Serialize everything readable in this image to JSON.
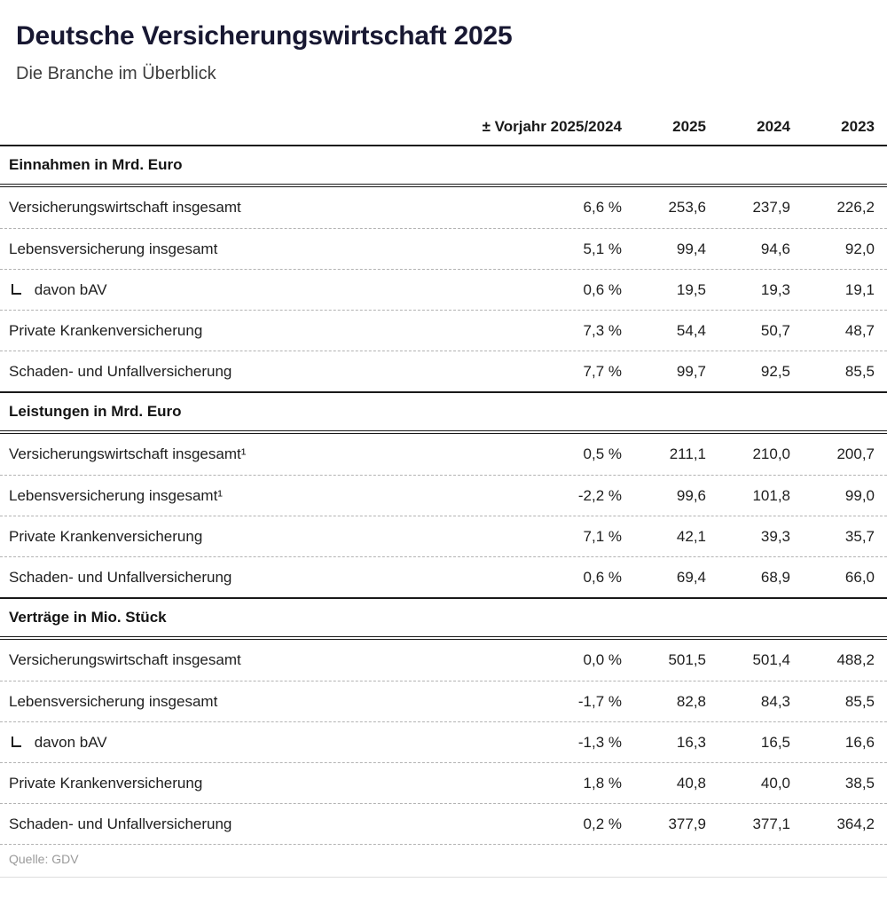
{
  "colors": {
    "title": "#181832",
    "body_text": "#1e1e1e",
    "subtitle": "#3d3d3d",
    "strong_rule": "#191919",
    "dashed_rule": "#b3b3b3",
    "source_text": "#9a9a9a",
    "background": "#ffffff"
  },
  "chart_data": {
    "type": "table",
    "title": "Deutsche Versicherungswirtschaft 2025",
    "subtitle": "Die Branche im Überblick",
    "source": "Quelle: GDV",
    "columns": [
      "± Vorjahr 2025/2024",
      "2025",
      "2024",
      "2023"
    ],
    "sections": [
      {
        "header": "Einnahmen in Mrd. Euro",
        "rows": [
          {
            "label": "Versicherungswirtschaft insgesamt",
            "sub": false,
            "values": [
              "6,6 %",
              "253,6",
              "237,9",
              "226,2"
            ]
          },
          {
            "label": "Lebensversicherung insgesamt",
            "sub": false,
            "values": [
              "5,1 %",
              "99,4",
              "94,6",
              "92,0"
            ]
          },
          {
            "label": "davon bAV",
            "sub": true,
            "values": [
              "0,6 %",
              "19,5",
              "19,3",
              "19,1"
            ]
          },
          {
            "label": "Private Krankenversicherung",
            "sub": false,
            "values": [
              "7,3 %",
              "54,4",
              "50,7",
              "48,7"
            ]
          },
          {
            "label": "Schaden- und Unfallversicherung",
            "sub": false,
            "values": [
              "7,7 %",
              "99,7",
              "92,5",
              "85,5"
            ]
          }
        ]
      },
      {
        "header": "Leistungen in Mrd. Euro",
        "rows": [
          {
            "label": "Versicherungswirtschaft insgesamt¹",
            "sub": false,
            "values": [
              "0,5 %",
              "211,1",
              "210,0",
              "200,7"
            ]
          },
          {
            "label": "Lebensversicherung insgesamt¹",
            "sub": false,
            "values": [
              "-2,2 %",
              "99,6",
              "101,8",
              "99,0"
            ]
          },
          {
            "label": "Private Krankenversicherung",
            "sub": false,
            "values": [
              "7,1 %",
              "42,1",
              "39,3",
              "35,7"
            ]
          },
          {
            "label": "Schaden- und Unfallversicherung",
            "sub": false,
            "values": [
              "0,6 %",
              "69,4",
              "68,9",
              "66,0"
            ]
          }
        ]
      },
      {
        "header": "Verträge in Mio. Stück",
        "rows": [
          {
            "label": "Versicherungswirtschaft insgesamt",
            "sub": false,
            "values": [
              "0,0 %",
              "501,5",
              "501,4",
              "488,2"
            ]
          },
          {
            "label": "Lebensversicherung insgesamt",
            "sub": false,
            "values": [
              "-1,7 %",
              "82,8",
              "84,3",
              "85,5"
            ]
          },
          {
            "label": "davon bAV",
            "sub": true,
            "values": [
              "-1,3 %",
              "16,3",
              "16,5",
              "16,6"
            ]
          },
          {
            "label": "Private Krankenversicherung",
            "sub": false,
            "values": [
              "1,8 %",
              "40,8",
              "40,0",
              "38,5"
            ]
          },
          {
            "label": "Schaden- und Unfallversicherung",
            "sub": false,
            "values": [
              "0,2 %",
              "377,9",
              "377,1",
              "364,2"
            ]
          }
        ]
      }
    ]
  }
}
